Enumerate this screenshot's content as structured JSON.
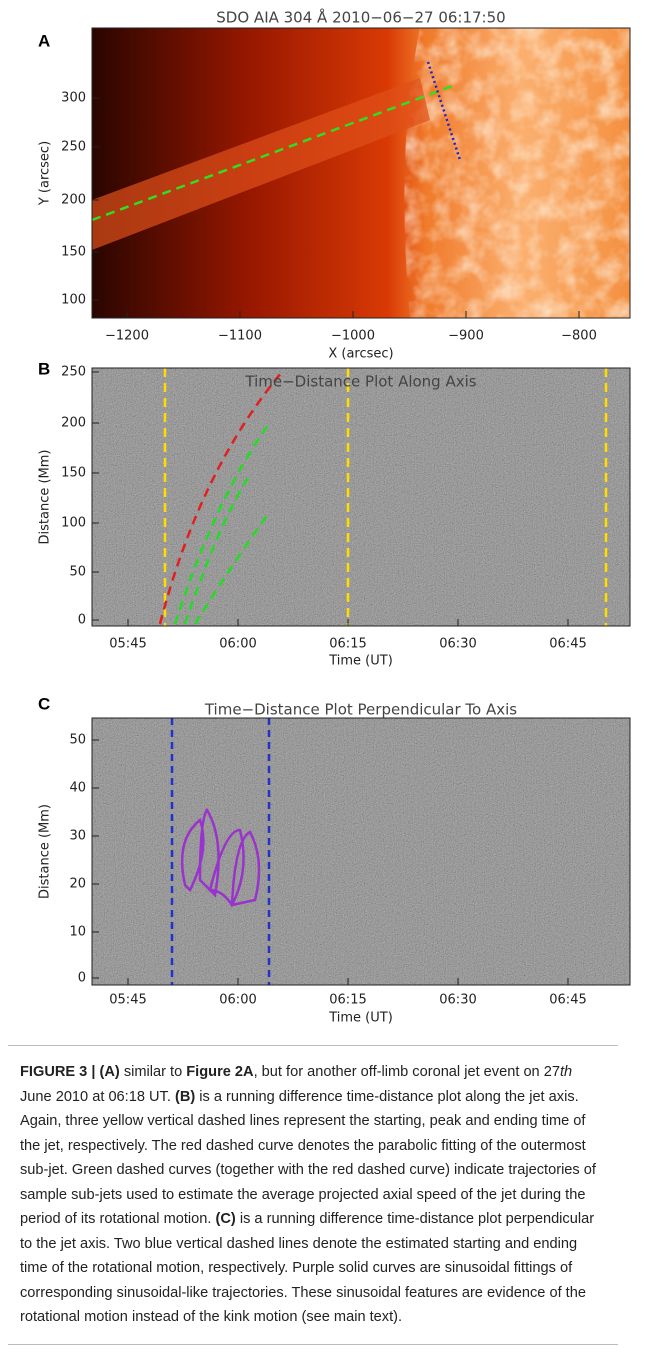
{
  "panels": [
    {
      "letter": "A",
      "title": "SDO AIA 304 Å 2010−06−27 06:17:50",
      "ylabel": "Y (arcsec)",
      "xlabel": "X (arcsec)",
      "yticks": [
        "300",
        "250",
        "200",
        "150",
        "100"
      ],
      "xticks": [
        "−1200",
        "−1100",
        "−1000",
        "−900",
        "−800"
      ]
    },
    {
      "letter": "B",
      "title": "Time−Distance Plot Along Axis",
      "ylabel": "Distance (Mm)",
      "xlabel": "Time (UT)",
      "yticks": [
        "250",
        "200",
        "150",
        "100",
        "50",
        "0"
      ],
      "xticks": [
        "05:45",
        "06:00",
        "06:15",
        "06:30",
        "06:45"
      ]
    },
    {
      "letter": "C",
      "title": "Time−Distance Plot Perpendicular To Axis",
      "ylabel": "Distance (Mm)",
      "xlabel": "Time (UT)",
      "yticks": [
        "50",
        "40",
        "30",
        "20",
        "10",
        "0"
      ],
      "xticks": [
        "05:45",
        "06:00",
        "06:15",
        "06:30",
        "06:45"
      ]
    }
  ],
  "caption": [
    "FIGURE 3 | (A)",
    " similar to ",
    "Figure 2A",
    ", but for another off-limb coronal jet event on 27",
    "th",
    " June 2010 at 06:18 UT. ",
    "(B)",
    " is a running difference time-distance plot along the jet axis. Again, three yellow vertical dashed lines represent the starting, peak and ending time of the jet, respectively. The red dashed curve denotes the parabolic fitting of the outermost sub-jet. Green dashed curves (together with the red dashed curve) indicate trajectories of sample sub-jets used to estimate the average projected axial speed of the jet during the period of its rotational motion. ",
    "(C)",
    " is a running difference time-distance plot perpendicular to the jet axis. Two blue vertical dashed lines denote the estimated starting and ending time of the rotational motion, respectively. Purple solid curves are sinusoidal fittings of corresponding sinusoidal-like trajectories. These sinusoidal features are evidence of the rotational motion instead of the kink motion (see main text)."
  ]
}
